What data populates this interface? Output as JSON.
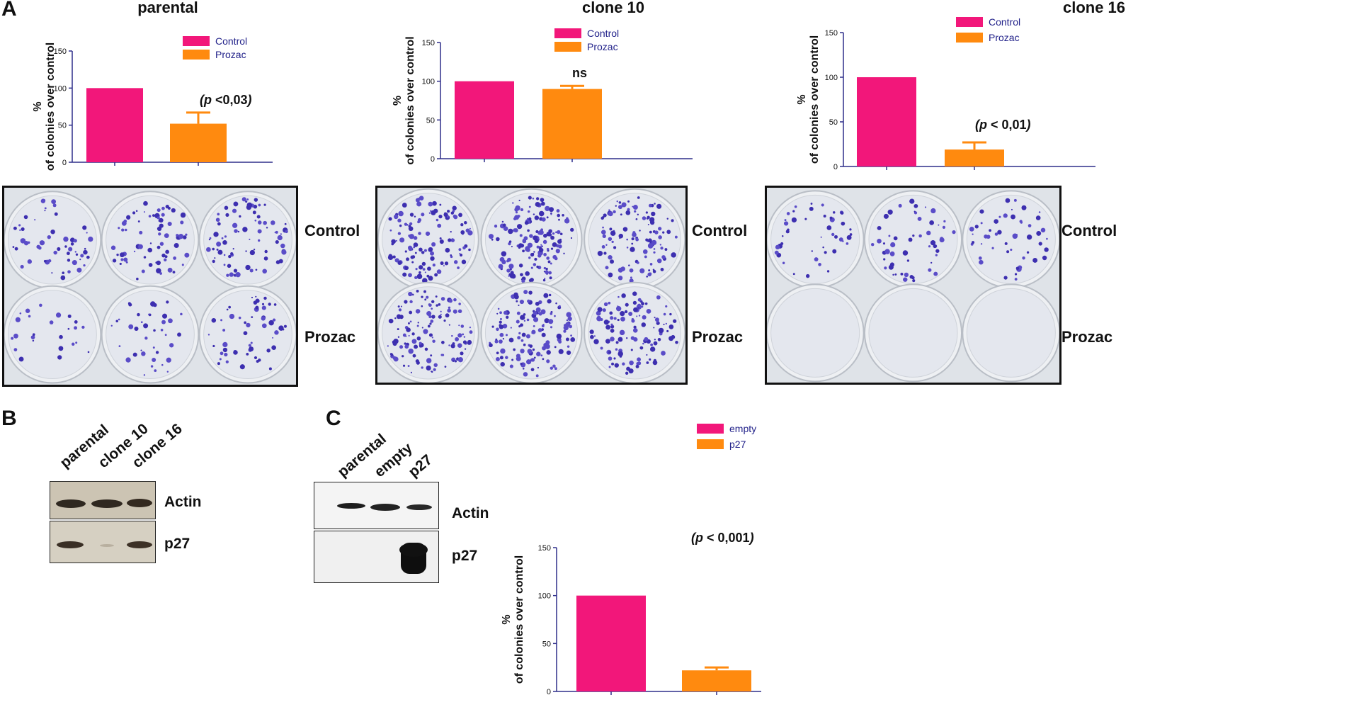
{
  "panels": {
    "A": "A",
    "B": "B",
    "C": "C"
  },
  "legend_colors": {
    "control": "#f2177a",
    "treated": "#ff8a0f",
    "axis": "#2e2e8a",
    "legend_text": "#22228a"
  },
  "chart_data": [
    {
      "id": "parental",
      "type": "bar",
      "title": "parental",
      "ylabel_line1": "%",
      "ylabel_line2": "of colonies over control",
      "ylim": [
        0,
        150
      ],
      "yticks": [
        0,
        50,
        100,
        150
      ],
      "series": [
        {
          "name": "Control",
          "value": 100,
          "error": 0
        },
        {
          "name": "Prozac",
          "value": 52,
          "error": 15
        }
      ],
      "annotation": {
        "italic": "p",
        "text": " <0,03",
        "open": "(",
        "close": ")"
      },
      "legend": "top-right"
    },
    {
      "id": "clone10",
      "type": "bar",
      "title": "clone 10",
      "ylabel_line1": "%",
      "ylabel_line2": "of colonies over control",
      "ylim": [
        0,
        150
      ],
      "yticks": [
        0,
        50,
        100,
        150
      ],
      "series": [
        {
          "name": "Control",
          "value": 100,
          "error": 0
        },
        {
          "name": "Prozac",
          "value": 90,
          "error": 4
        }
      ],
      "annotation": {
        "italic": "",
        "text": "ns",
        "open": "",
        "close": ""
      },
      "legend": "top-right"
    },
    {
      "id": "clone16",
      "type": "bar",
      "title": "clone 16",
      "ylabel_line1": "%",
      "ylabel_line2": "of colonies over control",
      "ylim": [
        0,
        150
      ],
      "yticks": [
        0,
        50,
        100,
        150
      ],
      "series": [
        {
          "name": "Control",
          "value": 100,
          "error": 0
        },
        {
          "name": "Prozac",
          "value": 19,
          "error": 8
        }
      ],
      "annotation": {
        "italic": "p",
        "text": " < 0,01",
        "open": "(",
        "close": ")"
      },
      "legend": "top-right"
    },
    {
      "id": "p27chart",
      "type": "bar",
      "title": "",
      "ylabel_line1": "%",
      "ylabel_line2": "of colonies over control",
      "ylim": [
        0,
        150
      ],
      "yticks": [
        0,
        50,
        100,
        150
      ],
      "series": [
        {
          "name": "empty",
          "value": 100,
          "error": 0
        },
        {
          "name": "p27",
          "value": 22,
          "error": 3
        }
      ],
      "annotation": {
        "italic": "p",
        "text": " < 0,001",
        "open": "(",
        "close": ")"
      },
      "legend": "top-right"
    }
  ],
  "plates": {
    "row_labels": [
      "Control",
      "Prozac"
    ]
  },
  "blot_B": {
    "lanes": [
      "parental",
      "clone 10",
      "clone 16"
    ],
    "rows": [
      "Actin",
      "p27"
    ]
  },
  "blot_C": {
    "lanes": [
      "parental",
      "empty",
      "p27"
    ],
    "rows": [
      "Actin",
      "p27"
    ]
  }
}
